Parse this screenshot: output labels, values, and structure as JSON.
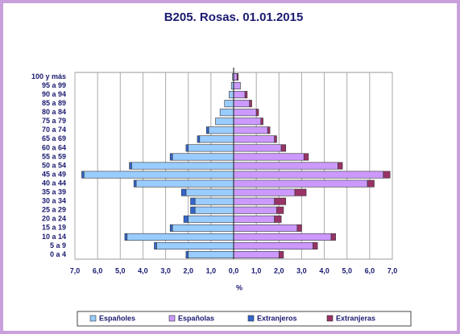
{
  "chart_data": {
    "type": "pyramid",
    "title": "B205. Rosas. 01.01.2015",
    "x_label": "%",
    "categories": [
      "0 a 4",
      "5 a 9",
      "10 a 14",
      "15 a 19",
      "20 a 24",
      "25 a 29",
      "30 a 34",
      "35 a 39",
      "40 a 44",
      "45 a 49",
      "50 a 54",
      "55 a 59",
      "60 a 64",
      "65 a 69",
      "70 a 74",
      "75 a 79",
      "80 a 84",
      "85 a 89",
      "90 a 94",
      "95 a 99",
      "100 y más"
    ],
    "series": [
      {
        "name": "Españoles",
        "color": "#99ccff",
        "values": [
          -2.0,
          -3.4,
          -4.7,
          -2.7,
          -2.0,
          -1.7,
          -1.7,
          -2.1,
          -4.3,
          -6.6,
          -4.5,
          -2.7,
          -2.0,
          -1.5,
          -1.1,
          -0.8,
          -0.6,
          -0.4,
          -0.2,
          -0.1,
          -0.05
        ]
      },
      {
        "name": "Españolas",
        "color": "#cc99ff",
        "values": [
          2.0,
          3.5,
          4.3,
          2.8,
          1.8,
          1.9,
          1.8,
          2.7,
          5.9,
          6.6,
          4.6,
          3.1,
          2.1,
          1.8,
          1.5,
          1.2,
          1.0,
          0.7,
          0.5,
          0.3,
          0.15
        ]
      },
      {
        "name": "Extranjeros",
        "color": "#3366cc",
        "values": [
          -0.1,
          -0.1,
          -0.1,
          -0.1,
          -0.2,
          -0.2,
          -0.2,
          -0.2,
          -0.1,
          -0.1,
          -0.1,
          -0.1,
          -0.1,
          -0.1,
          -0.1,
          0,
          0,
          0,
          0,
          0,
          0
        ]
      },
      {
        "name": "Extranjeras",
        "color": "#993366",
        "values": [
          0.2,
          0.2,
          0.2,
          0.2,
          0.3,
          0.3,
          0.5,
          0.5,
          0.3,
          0.3,
          0.2,
          0.2,
          0.2,
          0.1,
          0.1,
          0.1,
          0.1,
          0.1,
          0.1,
          0,
          0.05
        ]
      }
    ],
    "xlim": [
      -7,
      7
    ],
    "xticks": [
      {
        "value": -7,
        "label": "7,0"
      },
      {
        "value": -6,
        "label": "6,0"
      },
      {
        "value": -5,
        "label": "5,0"
      },
      {
        "value": -4,
        "label": "4,0"
      },
      {
        "value": -3,
        "label": "3,0"
      },
      {
        "value": -2,
        "label": "2,0"
      },
      {
        "value": -1,
        "label": "1,0"
      },
      {
        "value": 0,
        "label": "0,0"
      },
      {
        "value": 1,
        "label": "1,0"
      },
      {
        "value": 2,
        "label": "2,0"
      },
      {
        "value": 3,
        "label": "3,0"
      },
      {
        "value": 4,
        "label": "4,0"
      },
      {
        "value": 5,
        "label": "5,0"
      },
      {
        "value": 6,
        "label": "6,0"
      },
      {
        "value": 7,
        "label": "7,0"
      }
    ],
    "grid": true
  }
}
